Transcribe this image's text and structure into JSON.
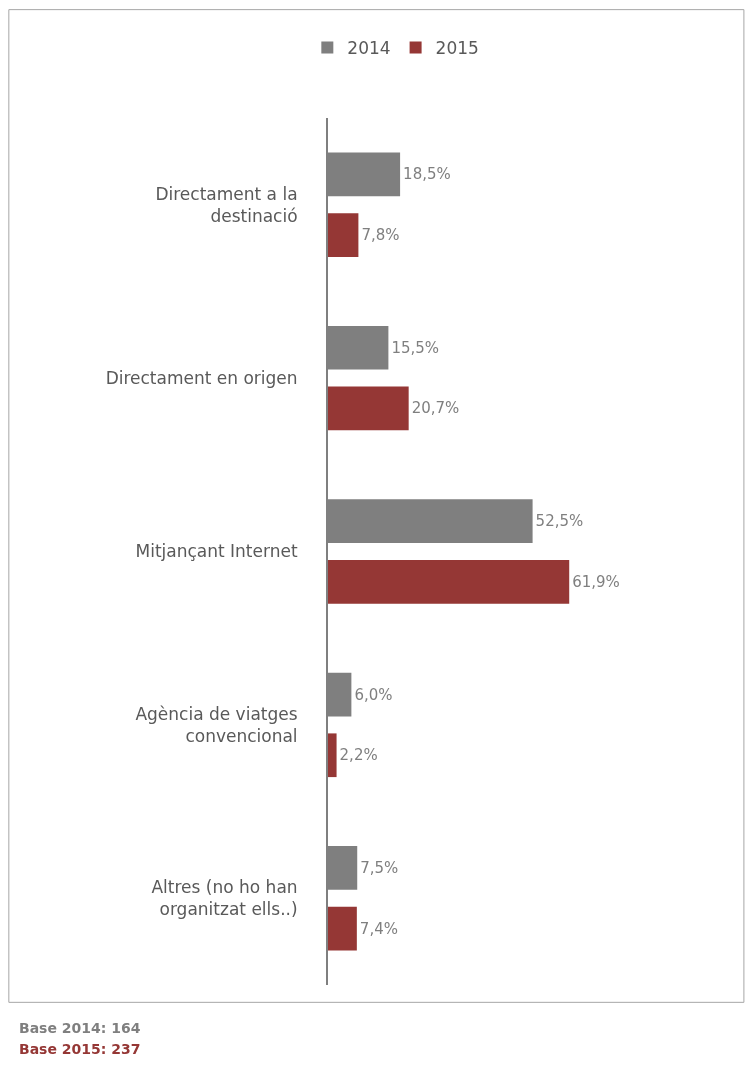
{
  "chart_data": {
    "type": "bar",
    "orientation": "horizontal",
    "categories": [
      "Directament a la destinació",
      "Directament en origen",
      "Mitjançant Internet",
      "Agència de viatges convencional",
      "Altres (no ho han organitzat ells..)"
    ],
    "series": [
      {
        "name": "2014",
        "color": "#7f7f7f",
        "values": [
          18.5,
          15.5,
          52.5,
          6.0,
          7.5
        ],
        "value_labels": [
          "18,5%",
          "15,5%",
          "52,5%",
          "6,0%",
          "7,5%"
        ]
      },
      {
        "name": "2015",
        "color": "#953735",
        "values": [
          7.8,
          20.7,
          61.9,
          2.2,
          7.4
        ],
        "value_labels": [
          "7,8%",
          "20,7%",
          "61,9%",
          "2,2%",
          "7,4%"
        ]
      }
    ],
    "legend": "top",
    "annotations": [
      "Base 2014: 164",
      "Base 2015: 237"
    ]
  }
}
